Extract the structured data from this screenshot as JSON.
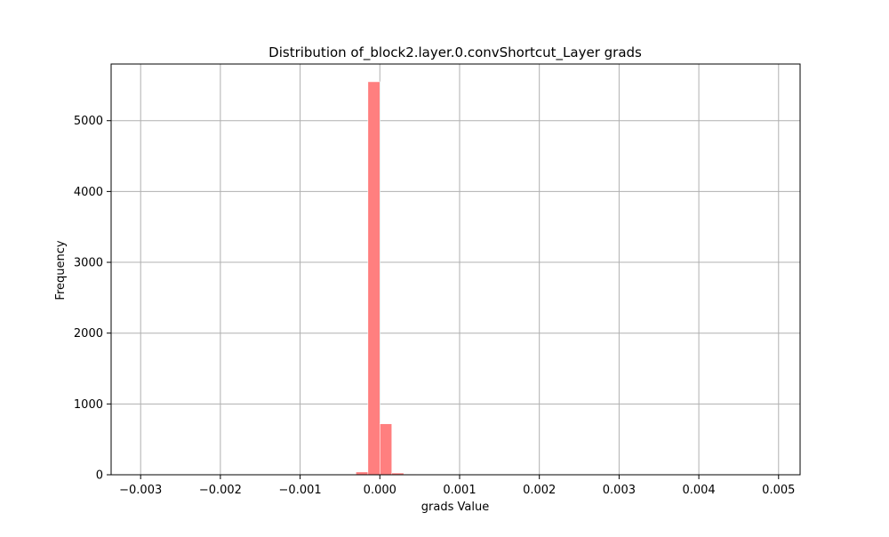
{
  "chart_data": {
    "type": "bar",
    "title": "Distribution of_block2.layer.0.convShortcut_Layer grads",
    "xlabel": "grads Value",
    "ylabel": "Frequency",
    "xlim": [
      -0.00337,
      0.00527
    ],
    "ylim": [
      0,
      5800
    ],
    "xticks": [
      -0.003,
      -0.002,
      -0.001,
      0.0,
      0.001,
      0.002,
      0.003,
      0.004,
      0.005
    ],
    "xtick_labels": [
      "−0.003",
      "−0.002",
      "−0.001",
      "0.000",
      "0.001",
      "0.002",
      "0.003",
      "0.004",
      "0.005"
    ],
    "yticks": [
      0,
      1000,
      2000,
      3000,
      4000,
      5000
    ],
    "ytick_labels": [
      "0",
      "1000",
      "2000",
      "3000",
      "4000",
      "5000"
    ],
    "grid": true,
    "colors": {
      "bar": "#ff7f7f",
      "grid": "#b0b0b0",
      "axes": "#000000"
    },
    "bins": [
      {
        "x0": -0.0003,
        "x1": -0.00015,
        "count": 40
      },
      {
        "x0": -0.00015,
        "x1": 0.0,
        "count": 5550
      },
      {
        "x0": 0.0,
        "x1": 0.00015,
        "count": 720
      },
      {
        "x0": 0.00015,
        "x1": 0.0003,
        "count": 25
      },
      {
        "x0": 0.0003,
        "x1": 0.00045,
        "count": 8
      }
    ]
  }
}
